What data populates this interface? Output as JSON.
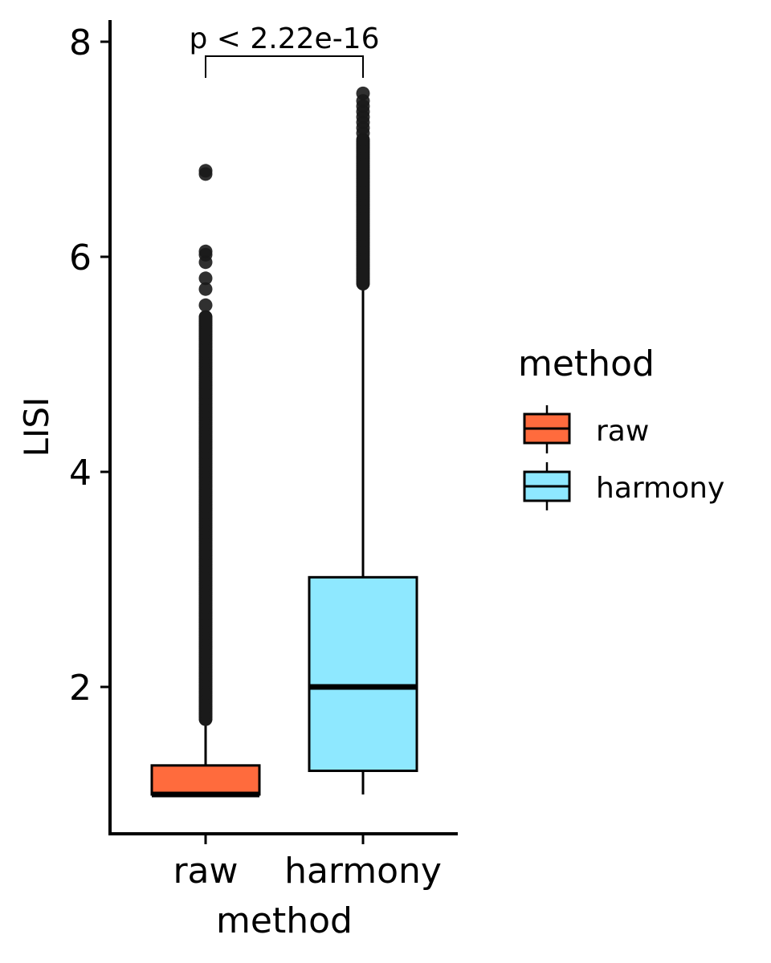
{
  "chart_data": {
    "type": "box",
    "xlabel": "method",
    "ylabel": "LISI",
    "categories": [
      "raw",
      "harmony"
    ],
    "ylim": [
      0.65,
      8.25
    ],
    "yticks": [
      2,
      4,
      6,
      8
    ],
    "grid": false,
    "legend": {
      "title": "method",
      "position": "right",
      "entries": [
        "raw",
        "harmony"
      ]
    },
    "annotation": {
      "text": "p < 2.22e-16",
      "between": [
        "raw",
        "harmony"
      ]
    },
    "series": [
      {
        "name": "raw",
        "color": "#FF6B3D",
        "min": 1.0,
        "q1": 1.0,
        "median": 1.0,
        "q3": 1.27,
        "whisker_high": 1.67,
        "outlier_range": [
          1.7,
          5.45
        ],
        "outliers_sparse": [
          5.55,
          5.7,
          5.8,
          5.95,
          6.02,
          6.05,
          6.77,
          6.8
        ]
      },
      {
        "name": "harmony",
        "color": "#8EE8FF",
        "min": 1.0,
        "q1": 1.22,
        "median": 2.0,
        "q3": 3.02,
        "whisker_high": 5.72,
        "outlier_range": [
          5.75,
          7.1
        ],
        "outliers_sparse": [
          7.15,
          7.2,
          7.25,
          7.3,
          7.35,
          7.4,
          7.45,
          7.52
        ]
      }
    ]
  }
}
